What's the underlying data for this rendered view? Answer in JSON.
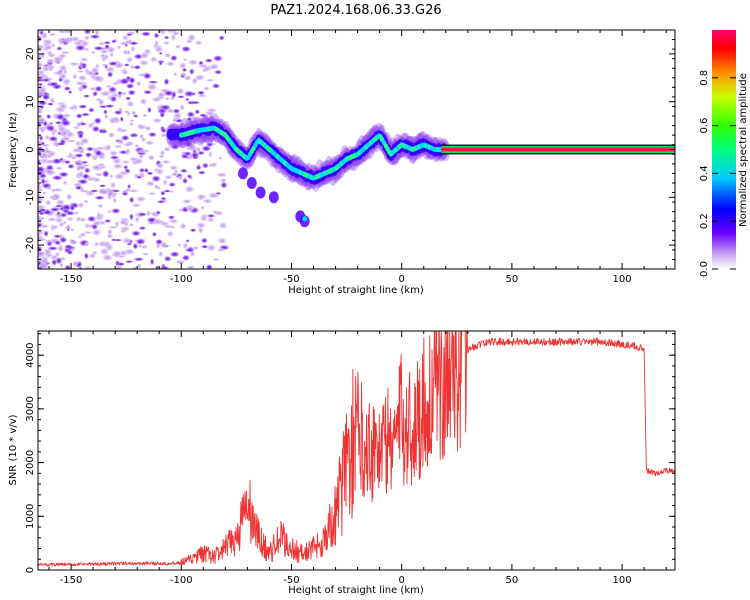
{
  "title": "PAZ1.2024.168.06.33.G26",
  "colors": {
    "snr_line": "#ee3333",
    "spectrogram_low": "#e6d2f5",
    "spectrogram_mid": "#7b00ff",
    "spectrogram_high": "#ff0040"
  },
  "colorbar": {
    "label": "Normalized spectral amplitude",
    "ticks": [
      "0.0",
      "0.2",
      "0.4",
      "0.6",
      "0.8"
    ],
    "tick_values": [
      0.0,
      0.2,
      0.4,
      0.6,
      0.8
    ],
    "range": [
      0,
      1
    ]
  },
  "chart_data": [
    {
      "type": "heatmap",
      "xlabel": "Height of straight line (km)",
      "ylabel": "Frequency (Hz)",
      "xlim": [
        -165,
        124
      ],
      "ylim": [
        -25,
        25
      ],
      "xticks": [
        -150,
        -100,
        -50,
        0,
        50,
        100
      ],
      "xtick_labels": [
        "-150",
        "-100",
        "-50",
        "0",
        "50",
        "100"
      ],
      "yticks": [
        -20,
        -10,
        0,
        10,
        20
      ],
      "ytick_labels": [
        "-20",
        "-10",
        "0",
        "10",
        "20"
      ],
      "ridge": {
        "x": [
          -100,
          -92,
          -85,
          -80,
          -75,
          -70,
          -65,
          -60,
          -55,
          -50,
          -45,
          -40,
          -35,
          -30,
          -25,
          -20,
          -15,
          -10,
          -5,
          0,
          5,
          10,
          15,
          20,
          124
        ],
        "y": [
          3,
          4,
          4.5,
          3,
          0,
          -2,
          2,
          0,
          -2,
          -4,
          -5,
          -6,
          -5,
          -4,
          -2,
          -1,
          1,
          3,
          -1,
          1,
          0,
          1,
          0,
          0,
          0
        ]
      }
    },
    {
      "type": "line",
      "xlabel": "Height of straight line (km)",
      "ylabel": "SNR (10 * v/v)",
      "xlim": [
        -165,
        124
      ],
      "ylim": [
        0,
        4450
      ],
      "xticks": [
        -150,
        -100,
        -50,
        0,
        50,
        100
      ],
      "xtick_labels": [
        "-150",
        "-100",
        "-50",
        "0",
        "50",
        "100"
      ],
      "yticks": [
        0,
        1000,
        2000,
        3000,
        4000
      ],
      "ytick_labels": [
        "0",
        "1000",
        "2000",
        "3000",
        "4000"
      ],
      "series": [
        {
          "x": [
            -165,
            -150,
            -130,
            -110,
            -100,
            -95,
            -90,
            -85,
            -80,
            -75,
            -70,
            -65,
            -60,
            -55,
            -50,
            -45,
            -40,
            -35,
            -30,
            -25,
            -20,
            -15,
            -10,
            -5,
            0,
            5,
            10,
            15,
            20,
            25,
            30,
            35,
            40,
            50,
            60,
            70,
            80,
            90,
            100,
            108,
            110,
            111,
            115,
            120,
            124
          ],
          "y": [
            100,
            100,
            120,
            120,
            130,
            200,
            300,
            250,
            400,
            600,
            1200,
            600,
            300,
            600,
            400,
            300,
            400,
            600,
            1000,
            2000,
            2600,
            2300,
            2300,
            2400,
            2800,
            2600,
            3100,
            3400,
            3700,
            4000,
            4100,
            4200,
            4250,
            4250,
            4250,
            4250,
            4250,
            4250,
            4200,
            4150,
            4100,
            1850,
            1800,
            1850,
            1850
          ]
        }
      ]
    }
  ]
}
